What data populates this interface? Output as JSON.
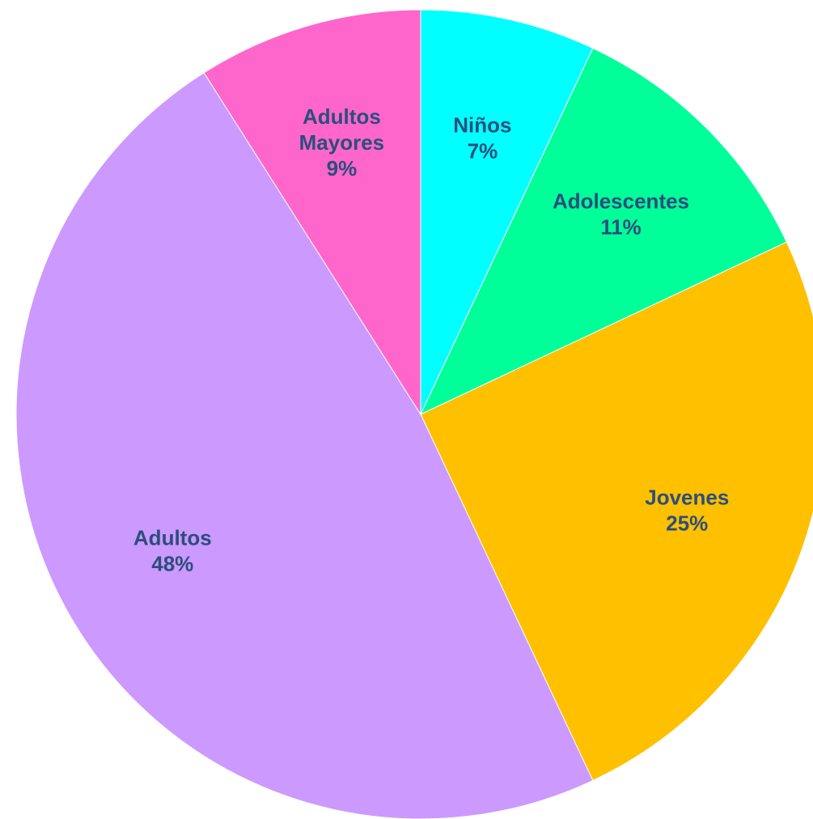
{
  "chart_data": {
    "type": "pie",
    "start": "top",
    "direction": "clockwise",
    "slices": [
      {
        "label": "Niños",
        "value": 7,
        "value_label": "7%",
        "color": "#00ffff"
      },
      {
        "label": "Adolescentes",
        "value": 11,
        "value_label": "11%",
        "color": "#00ff99"
      },
      {
        "label": "Jovenes",
        "value": 25,
        "value_label": "25%",
        "color": "#ffc000"
      },
      {
        "label": "Adultos",
        "value": 48,
        "value_label": "48%",
        "color": "#cc99ff"
      },
      {
        "label": "Adultos Mayores",
        "value": 9,
        "value_label": "9%",
        "color": "#ff66cc"
      }
    ],
    "label_color": "#2b4e7c"
  }
}
